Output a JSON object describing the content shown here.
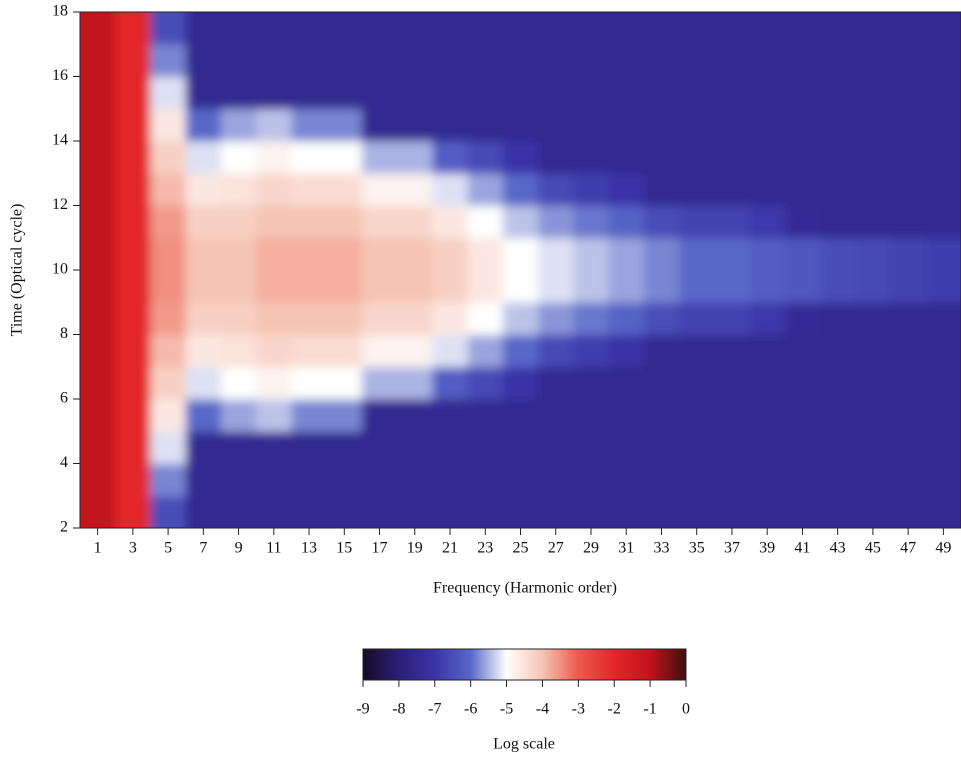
{
  "chart_data": {
    "type": "heatmap",
    "x_label": "Frequency (Harmonic order)",
    "y_label": "Time (Optical cycle)",
    "x": [
      1,
      3,
      5,
      7,
      9,
      11,
      13,
      15,
      17,
      19,
      21,
      23,
      25,
      27,
      29,
      31,
      33,
      35,
      37,
      39,
      41,
      43,
      45,
      47,
      49
    ],
    "y": [
      2.5,
      3.5,
      4.5,
      5.5,
      6.5,
      7.5,
      8.5,
      9.5,
      10.5,
      11.5,
      12.5,
      13.5,
      14.5,
      15.5,
      16.5,
      17.5
    ],
    "values": [
      [
        -1,
        -2,
        -6.5,
        -7.5,
        -7.5,
        -7.5,
        -7.5,
        -7.5,
        -7.5,
        -7.5,
        -7.5,
        -7.5,
        -7.5,
        -7.5,
        -7.5,
        -7.5,
        -7.5,
        -7.5,
        -7.5,
        -7.5,
        -7.5,
        -7.5,
        -7.5,
        -7.5,
        -7.5
      ],
      [
        -1,
        -2,
        -5.8,
        -7.5,
        -7.5,
        -7.5,
        -7.5,
        -7.5,
        -7.5,
        -7.5,
        -7.5,
        -7.5,
        -7.5,
        -7.5,
        -7.5,
        -7.5,
        -7.5,
        -7.5,
        -7.5,
        -7.5,
        -7.5,
        -7.5,
        -7.5,
        -7.5,
        -7.5
      ],
      [
        -1,
        -2,
        -5.2,
        -7.5,
        -7.5,
        -7.5,
        -7.5,
        -7.5,
        -7.5,
        -7.5,
        -7.5,
        -7.5,
        -7.5,
        -7.5,
        -7.5,
        -7.5,
        -7.5,
        -7.5,
        -7.5,
        -7.5,
        -7.5,
        -7.5,
        -7.5,
        -7.5,
        -7.5
      ],
      [
        -1,
        -2,
        -4.6,
        -6,
        -5.6,
        -5.4,
        -5.8,
        -5.8,
        -7.5,
        -7.5,
        -7.5,
        -7.5,
        -7.5,
        -7.5,
        -7.5,
        -7.5,
        -7.5,
        -7.5,
        -7.5,
        -7.5,
        -7.5,
        -7.5,
        -7.5,
        -7.5,
        -7.5
      ],
      [
        -1,
        -2,
        -4.2,
        -5.2,
        -5,
        -4.8,
        -5,
        -5,
        -5.5,
        -5.5,
        -6.2,
        -6.6,
        -7,
        -7.5,
        -7.5,
        -7.5,
        -7.5,
        -7.5,
        -7.5,
        -7.5,
        -7.5,
        -7.5,
        -7.5,
        -7.5,
        -7.5
      ],
      [
        -1,
        -2,
        -3.9,
        -4.6,
        -4.5,
        -4.3,
        -4.4,
        -4.4,
        -4.8,
        -4.8,
        -5.2,
        -5.6,
        -6,
        -6.6,
        -6.8,
        -7,
        -7.5,
        -7.5,
        -7.5,
        -7.5,
        -7.5,
        -7.5,
        -7.5,
        -7.5,
        -7.5
      ],
      [
        -1,
        -2,
        -3.6,
        -4.2,
        -4.2,
        -4,
        -4,
        -4,
        -4.3,
        -4.3,
        -4.6,
        -5,
        -5.4,
        -5.7,
        -5.9,
        -6.1,
        -6.5,
        -6.7,
        -6.7,
        -6.9,
        -7.4,
        -7.5,
        -7.5,
        -7.5,
        -7.5
      ],
      [
        -1,
        -2,
        -3.5,
        -4,
        -4,
        -3.8,
        -3.8,
        -3.8,
        -4,
        -4,
        -4.2,
        -4.6,
        -5,
        -5.2,
        -5.4,
        -5.6,
        -5.8,
        -6,
        -6,
        -6.2,
        -6.3,
        -6.5,
        -6.6,
        -6.7,
        -6.8
      ],
      [
        -1,
        -2,
        -3.5,
        -4,
        -4,
        -3.8,
        -3.8,
        -3.8,
        -4,
        -4,
        -4.2,
        -4.6,
        -5,
        -5.2,
        -5.4,
        -5.6,
        -5.8,
        -6,
        -6,
        -6.2,
        -6.3,
        -6.5,
        -6.6,
        -6.7,
        -6.8
      ],
      [
        -1,
        -2,
        -3.6,
        -4.2,
        -4.2,
        -4,
        -4,
        -4,
        -4.3,
        -4.3,
        -4.6,
        -5,
        -5.4,
        -5.7,
        -5.9,
        -6.1,
        -6.5,
        -6.7,
        -6.7,
        -6.9,
        -7.4,
        -7.5,
        -7.5,
        -7.5,
        -7.5
      ],
      [
        -1,
        -2,
        -3.9,
        -4.6,
        -4.5,
        -4.3,
        -4.4,
        -4.4,
        -4.8,
        -4.8,
        -5.2,
        -5.6,
        -6,
        -6.6,
        -6.8,
        -7,
        -7.5,
        -7.5,
        -7.5,
        -7.5,
        -7.5,
        -7.5,
        -7.5,
        -7.5,
        -7.5
      ],
      [
        -1,
        -2,
        -4.2,
        -5.2,
        -5,
        -4.8,
        -5,
        -5,
        -5.5,
        -5.5,
        -6.2,
        -6.6,
        -7,
        -7.5,
        -7.5,
        -7.5,
        -7.5,
        -7.5,
        -7.5,
        -7.5,
        -7.5,
        -7.5,
        -7.5,
        -7.5,
        -7.5
      ],
      [
        -1,
        -2,
        -4.6,
        -6,
        -5.6,
        -5.4,
        -5.8,
        -5.8,
        -7.5,
        -7.5,
        -7.5,
        -7.5,
        -7.5,
        -7.5,
        -7.5,
        -7.5,
        -7.5,
        -7.5,
        -7.5,
        -7.5,
        -7.5,
        -7.5,
        -7.5,
        -7.5,
        -7.5
      ],
      [
        -1,
        -2,
        -5.2,
        -7.5,
        -7.5,
        -7.5,
        -7.5,
        -7.5,
        -7.5,
        -7.5,
        -7.5,
        -7.5,
        -7.5,
        -7.5,
        -7.5,
        -7.5,
        -7.5,
        -7.5,
        -7.5,
        -7.5,
        -7.5,
        -7.5,
        -7.5,
        -7.5,
        -7.5
      ],
      [
        -1,
        -2,
        -5.8,
        -7.5,
        -7.5,
        -7.5,
        -7.5,
        -7.5,
        -7.5,
        -7.5,
        -7.5,
        -7.5,
        -7.5,
        -7.5,
        -7.5,
        -7.5,
        -7.5,
        -7.5,
        -7.5,
        -7.5,
        -7.5,
        -7.5,
        -7.5,
        -7.5,
        -7.5
      ],
      [
        -1,
        -2,
        -6.5,
        -7.5,
        -7.5,
        -7.5,
        -7.5,
        -7.5,
        -7.5,
        -7.5,
        -7.5,
        -7.5,
        -7.5,
        -7.5,
        -7.5,
        -7.5,
        -7.5,
        -7.5,
        -7.5,
        -7.5,
        -7.5,
        -7.5,
        -7.5,
        -7.5,
        -7.5
      ]
    ],
    "xlim": [
      0,
      50
    ],
    "ylim": [
      2,
      18
    ],
    "xticks": [
      1,
      3,
      5,
      7,
      9,
      11,
      13,
      15,
      17,
      19,
      21,
      23,
      25,
      27,
      29,
      31,
      33,
      35,
      37,
      39,
      41,
      43,
      45,
      47,
      49
    ],
    "yticks": [
      2,
      4,
      6,
      8,
      10,
      12,
      14,
      16,
      18
    ],
    "colorscale": [
      "#150b26",
      "#2b1f78",
      "#3b33a8",
      "#5868c8",
      "#ffffff",
      "#f6c4b4",
      "#ec5a4c",
      "#e3262a",
      "#c0141c",
      "#3d0e10"
    ],
    "colorbar": {
      "label": "Log scale",
      "lim": [
        -9,
        0
      ],
      "ticks": [
        -9,
        -8,
        -7,
        -6,
        -5,
        -4,
        -3,
        -2,
        -1,
        0
      ]
    }
  }
}
